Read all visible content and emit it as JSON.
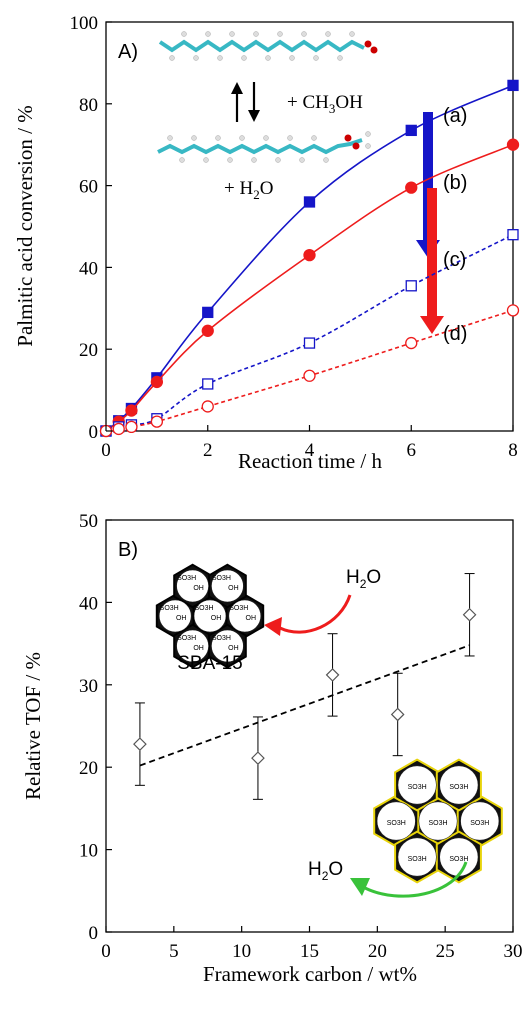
{
  "chart_data": [
    {
      "panel_label": "A)",
      "type": "line",
      "xlabel": "Reaction time / h",
      "ylabel": "Palmitic acid conversion / %",
      "xlim": [
        0,
        8
      ],
      "ylim": [
        0,
        100
      ],
      "xticks": [
        "0",
        "2",
        "4",
        "6",
        "8"
      ],
      "yticks": [
        "0",
        "20",
        "40",
        "60",
        "80",
        "100"
      ],
      "grid": false,
      "series": [
        {
          "name": "(a)",
          "color": "#1515c8",
          "marker": "square-filled",
          "line": "solid",
          "x": [
            0,
            0.25,
            0.5,
            1,
            2,
            4,
            6,
            8
          ],
          "y": [
            0,
            2.5,
            5.5,
            13,
            29,
            56,
            73.5,
            84.5
          ]
        },
        {
          "name": "(b)",
          "color": "#ee1c1c",
          "marker": "circle-filled",
          "line": "solid",
          "x": [
            0,
            0.25,
            0.5,
            1,
            2,
            4,
            6,
            8
          ],
          "y": [
            0,
            2.3,
            5,
            12,
            24.5,
            43,
            59.5,
            70
          ]
        },
        {
          "name": "(c)",
          "color": "#1515c8",
          "marker": "square-open",
          "line": "dashed",
          "x": [
            0,
            0.25,
            0.5,
            1,
            2,
            4,
            6,
            8
          ],
          "y": [
            0,
            1,
            1.5,
            3,
            11.5,
            21.5,
            35.5,
            48
          ]
        },
        {
          "name": "(d)",
          "color": "#ee1c1c",
          "marker": "circle-open",
          "line": "dashed",
          "x": [
            0,
            0.25,
            0.5,
            1,
            2,
            4,
            6,
            8
          ],
          "y": [
            0,
            0.5,
            1,
            2.3,
            6,
            13.5,
            21.5,
            29.5
          ]
        }
      ],
      "annotations": {
        "equilibrium": "+ CH",
        "methanol_sub": "3",
        "methanol_rest": "OH",
        "water_plus": "+ H",
        "water_sub": "2",
        "water_rest": "O"
      }
    },
    {
      "panel_label": "B)",
      "type": "scatter",
      "xlabel": "Framework carbon  / wt%",
      "ylabel": "Relative TOF / %",
      "xlim": [
        0,
        30
      ],
      "ylim": [
        0,
        50
      ],
      "xticks": [
        "0",
        "5",
        "10",
        "15",
        "20",
        "25",
        "30"
      ],
      "yticks": [
        "0",
        "10",
        "20",
        "30",
        "40",
        "50"
      ],
      "grid": false,
      "series": [
        {
          "color": "#555555",
          "marker": "diamond-open",
          "x": [
            2.5,
            11.2,
            16.7,
            21.5,
            26.8
          ],
          "y": [
            22.8,
            21.1,
            31.2,
            26.4,
            38.5
          ],
          "yerr": [
            5,
            5,
            5,
            5,
            5
          ]
        }
      ],
      "trendline": {
        "style": "dashed",
        "x": [
          2.5,
          26.8
        ],
        "y": [
          20.2,
          34.8
        ]
      },
      "annotations": {
        "sba_label": "SBA-15",
        "h2o_top_main": "H",
        "h2o_top_sub": "2",
        "h2o_top_rest": "O",
        "h2o_bottom_main": "H",
        "h2o_bottom_sub": "2",
        "h2o_bottom_rest": "O",
        "so3h": "SO3H",
        "oh": "OH"
      }
    }
  ]
}
